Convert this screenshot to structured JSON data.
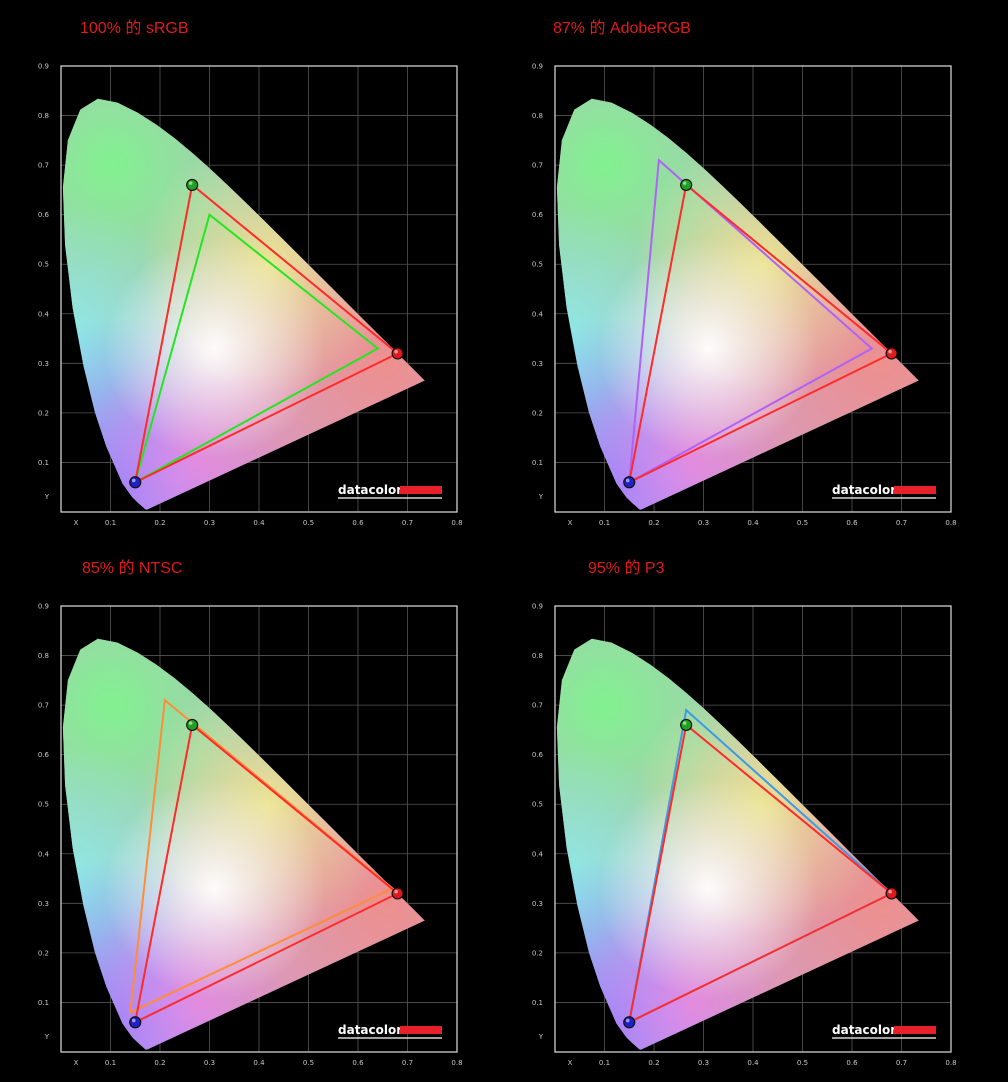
{
  "chart_data": [
    {
      "type": "scatter",
      "title": "100% 的 sRGB",
      "xlabel": "X",
      "ylabel": "Y",
      "xlim": [
        0,
        0.8
      ],
      "ylim": [
        0,
        0.9
      ],
      "x_ticks": [
        "0.1",
        "0.2",
        "0.3",
        "0.4",
        "0.5",
        "0.6",
        "0.7",
        "0.8"
      ],
      "y_ticks": [
        "0.1",
        "0.2",
        "0.3",
        "0.4",
        "0.5",
        "0.6",
        "0.7",
        "0.8",
        "0.9"
      ],
      "grid": true,
      "series": [
        {
          "color": "#ff2a2a",
          "points": [
            [
              0.68,
              0.32
            ],
            [
              0.265,
              0.66
            ],
            [
              0.15,
              0.06
            ]
          ],
          "markers": true
        },
        {
          "color": "#22e622",
          "points": [
            [
              0.64,
              0.33
            ],
            [
              0.3,
              0.6
            ],
            [
              0.15,
              0.06
            ]
          ]
        }
      ]
    },
    {
      "type": "scatter",
      "title": "87% 的 AdobeRGB",
      "xlabel": "X",
      "ylabel": "Y",
      "xlim": [
        0,
        0.8
      ],
      "ylim": [
        0,
        0.9
      ],
      "x_ticks": [
        "0.1",
        "0.2",
        "0.3",
        "0.4",
        "0.5",
        "0.6",
        "0.7",
        "0.8"
      ],
      "y_ticks": [
        "0.1",
        "0.2",
        "0.3",
        "0.4",
        "0.5",
        "0.6",
        "0.7",
        "0.8",
        "0.9"
      ],
      "grid": true,
      "series": [
        {
          "color": "#ff2a2a",
          "points": [
            [
              0.68,
              0.32
            ],
            [
              0.265,
              0.66
            ],
            [
              0.15,
              0.06
            ]
          ],
          "markers": true
        },
        {
          "color": "#b062f5",
          "points": [
            [
              0.64,
              0.33
            ],
            [
              0.21,
              0.71
            ],
            [
              0.15,
              0.06
            ]
          ]
        }
      ]
    },
    {
      "type": "scatter",
      "title": "85% 的 NTSC",
      "xlabel": "X",
      "ylabel": "Y",
      "xlim": [
        0,
        0.8
      ],
      "ylim": [
        0,
        0.9
      ],
      "x_ticks": [
        "0.1",
        "0.2",
        "0.3",
        "0.4",
        "0.5",
        "0.6",
        "0.7",
        "0.8"
      ],
      "y_ticks": [
        "0.1",
        "0.2",
        "0.3",
        "0.4",
        "0.5",
        "0.6",
        "0.7",
        "0.8",
        "0.9"
      ],
      "grid": true,
      "series": [
        {
          "color": "#ff2a2a",
          "points": [
            [
              0.68,
              0.32
            ],
            [
              0.265,
              0.66
            ],
            [
              0.15,
              0.06
            ]
          ],
          "markers": true
        },
        {
          "color": "#ff8c3a",
          "points": [
            [
              0.67,
              0.33
            ],
            [
              0.21,
              0.71
            ],
            [
              0.14,
              0.08
            ]
          ]
        }
      ]
    },
    {
      "type": "scatter",
      "title": "95% 的 P3",
      "xlabel": "X",
      "ylabel": "Y",
      "xlim": [
        0,
        0.8
      ],
      "ylim": [
        0,
        0.9
      ],
      "x_ticks": [
        "0.1",
        "0.2",
        "0.3",
        "0.4",
        "0.5",
        "0.6",
        "0.7",
        "0.8"
      ],
      "y_ticks": [
        "0.1",
        "0.2",
        "0.3",
        "0.4",
        "0.5",
        "0.6",
        "0.7",
        "0.8",
        "0.9"
      ],
      "grid": true,
      "series": [
        {
          "color": "#ff2a2a",
          "points": [
            [
              0.68,
              0.32
            ],
            [
              0.265,
              0.66
            ],
            [
              0.15,
              0.06
            ]
          ],
          "markers": true
        },
        {
          "color": "#3d9be8",
          "points": [
            [
              0.68,
              0.32
            ],
            [
              0.265,
              0.69
            ],
            [
              0.15,
              0.06
            ]
          ]
        }
      ]
    }
  ],
  "logo": {
    "text": "datacolor",
    "bar_color": "#e8202a"
  },
  "colors": {
    "background": "#000000",
    "title": "#e01a1a",
    "grid": "#555555",
    "frame": "#cfcfcf",
    "marker_red": "#e01a1a",
    "marker_green": "#22a022",
    "marker_blue": "#2020c8"
  }
}
